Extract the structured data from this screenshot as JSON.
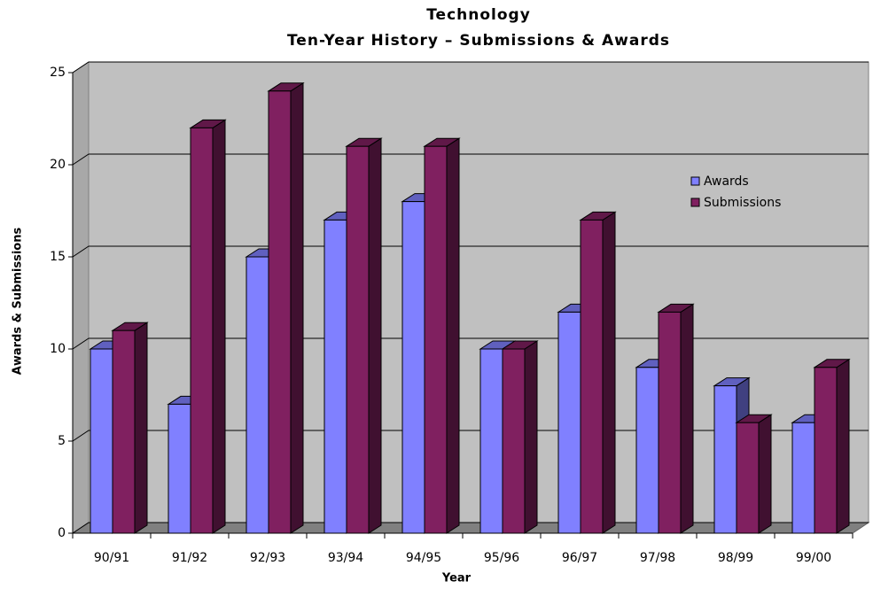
{
  "chart_data": {
    "type": "bar3d",
    "title": "Technology",
    "subtitle": "Ten-Year History – Submissions & Awards",
    "x_label": "Year",
    "y_label": "Awards & Submissions",
    "categories": [
      "90/91",
      "91/92",
      "92/93",
      "93/94",
      "94/95",
      "95/96",
      "96/97",
      "97/98",
      "98/99",
      "99/00"
    ],
    "series": [
      {
        "name": "Awards",
        "color": "#8080ff",
        "values": [
          10,
          7,
          15,
          17,
          18,
          10,
          12,
          9,
          8,
          6
        ]
      },
      {
        "name": "Submissions",
        "color": "#802060",
        "values": [
          11,
          22,
          24,
          21,
          21,
          10,
          17,
          12,
          6,
          9
        ]
      }
    ],
    "ylim": [
      0,
      25
    ],
    "yticks": [
      0,
      5,
      10,
      15,
      20,
      25
    ],
    "grid": true,
    "legend": "right"
  }
}
